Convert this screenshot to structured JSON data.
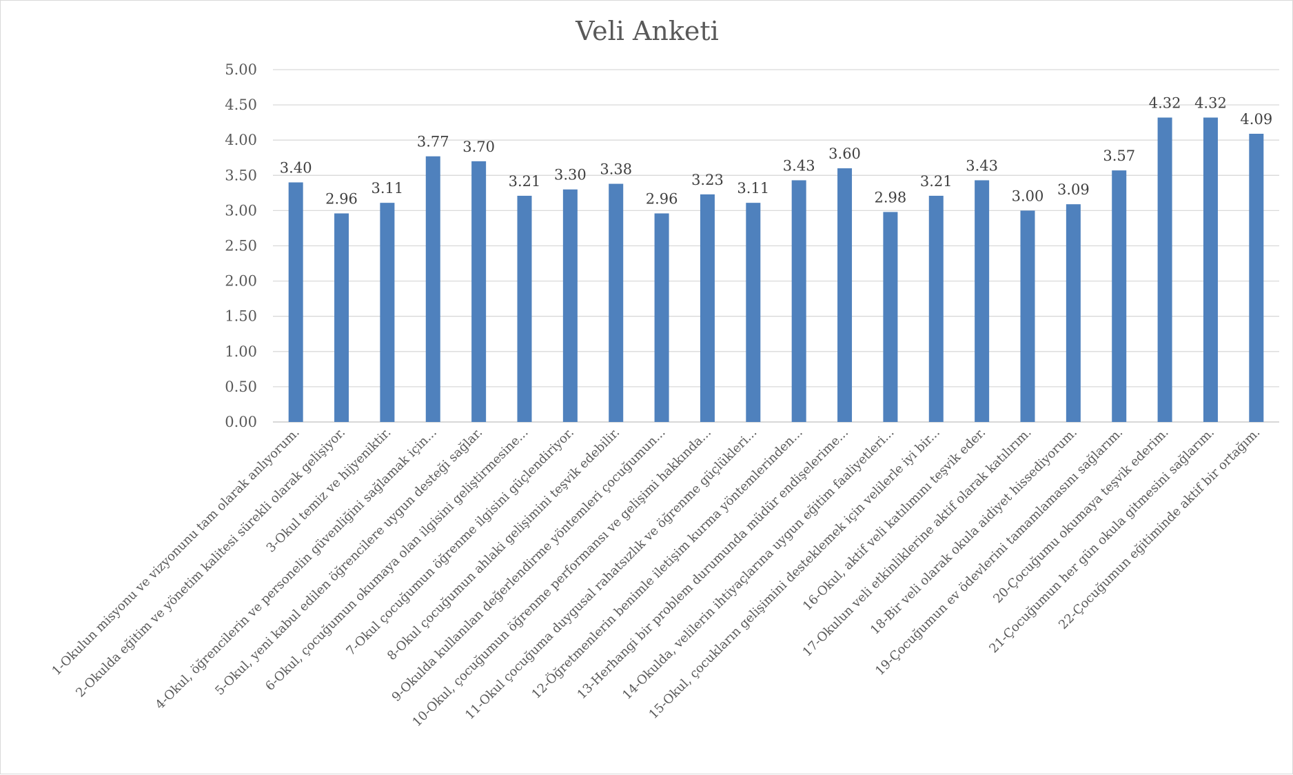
{
  "chart_data": {
    "type": "bar",
    "title": "Veli Anketi",
    "xlabel": "",
    "ylabel": "",
    "ylim": [
      0,
      5
    ],
    "yticks": [
      "0.00",
      "0.50",
      "1.00",
      "1.50",
      "2.00",
      "2.50",
      "3.00",
      "3.50",
      "4.00",
      "4.50",
      "5.00"
    ],
    "grid": true,
    "legend": "none",
    "bar_color": "#4f81bd",
    "categories": [
      "1-Okulun misyonu ve vizyonunu tam olarak anlıyorum.",
      "2-Okulda eğitim ve yönetim kalitesi sürekli olarak gelişiyor.",
      "3-Okul temiz ve hijyeniktir.",
      "4-Okul, öğrencilerin ve personelin güvenliğini sağlamak için...",
      "5-Okul, yeni kabul edilen öğrencilere uygun desteği sağlar.",
      "6-Okul, çocuğumun okumaya olan ilgisini geliştirmesine...",
      "7-Okul çocuğumun öğrenme ilgisini güçlendiriyor.",
      "8-Okul çocuğumun ahlaki gelişimini teşvik edebilir.",
      "9-Okulda kullanılan değerlendirme yöntemleri çocuğumun...",
      "10-Okul, çocuğumun öğrenme performansı ve gelişimi hakkında...",
      "11-Okul çocuğuma duygusal rahatsızlık ve öğrenme güçlükleri...",
      "12-Öğretmenlerin benimle iletişim kurma yöntemlerinden...",
      "13-Herhangi bir problem durumunda müdür endişelerime...",
      "14-Okulda, velilerin ihtiyaçlarına uygun eğitim faaliyetleri...",
      "15-Okul, çocukların gelişimini desteklemek için velilerle iyi bir...",
      "16-Okul, aktif veli katılımını teşvik eder.",
      "17-Okulun veli etkinliklerine aktif olarak katılırım.",
      "18-Bir veli olarak okula aidiyet hissediyorum.",
      "19-Çocuğumun ev ödevlerini tamamlamasını sağlarım.",
      "20-Çocuğumu okumaya teşvik ederim.",
      "21-Çocuğumun her gün okula gitmesini sağlarım.",
      "22-Çocuğumun eğitiminde aktif bir ortağım."
    ],
    "values": [
      3.4,
      2.96,
      3.11,
      3.77,
      3.7,
      3.21,
      3.3,
      3.38,
      2.96,
      3.23,
      3.11,
      3.43,
      3.6,
      2.98,
      3.21,
      3.43,
      3.0,
      3.09,
      3.57,
      4.32,
      4.32,
      4.09
    ],
    "data_labels": [
      "3.40",
      "2.96",
      "3.11",
      "3.77",
      "3.70",
      "3.21",
      "3.30",
      "3.38",
      "2.96",
      "3.23",
      "3.11",
      "3.43",
      "3.60",
      "2.98",
      "3.21",
      "3.43",
      "3.00",
      "3.09",
      "3.57",
      "4.32",
      "4.32",
      "4.09"
    ]
  }
}
